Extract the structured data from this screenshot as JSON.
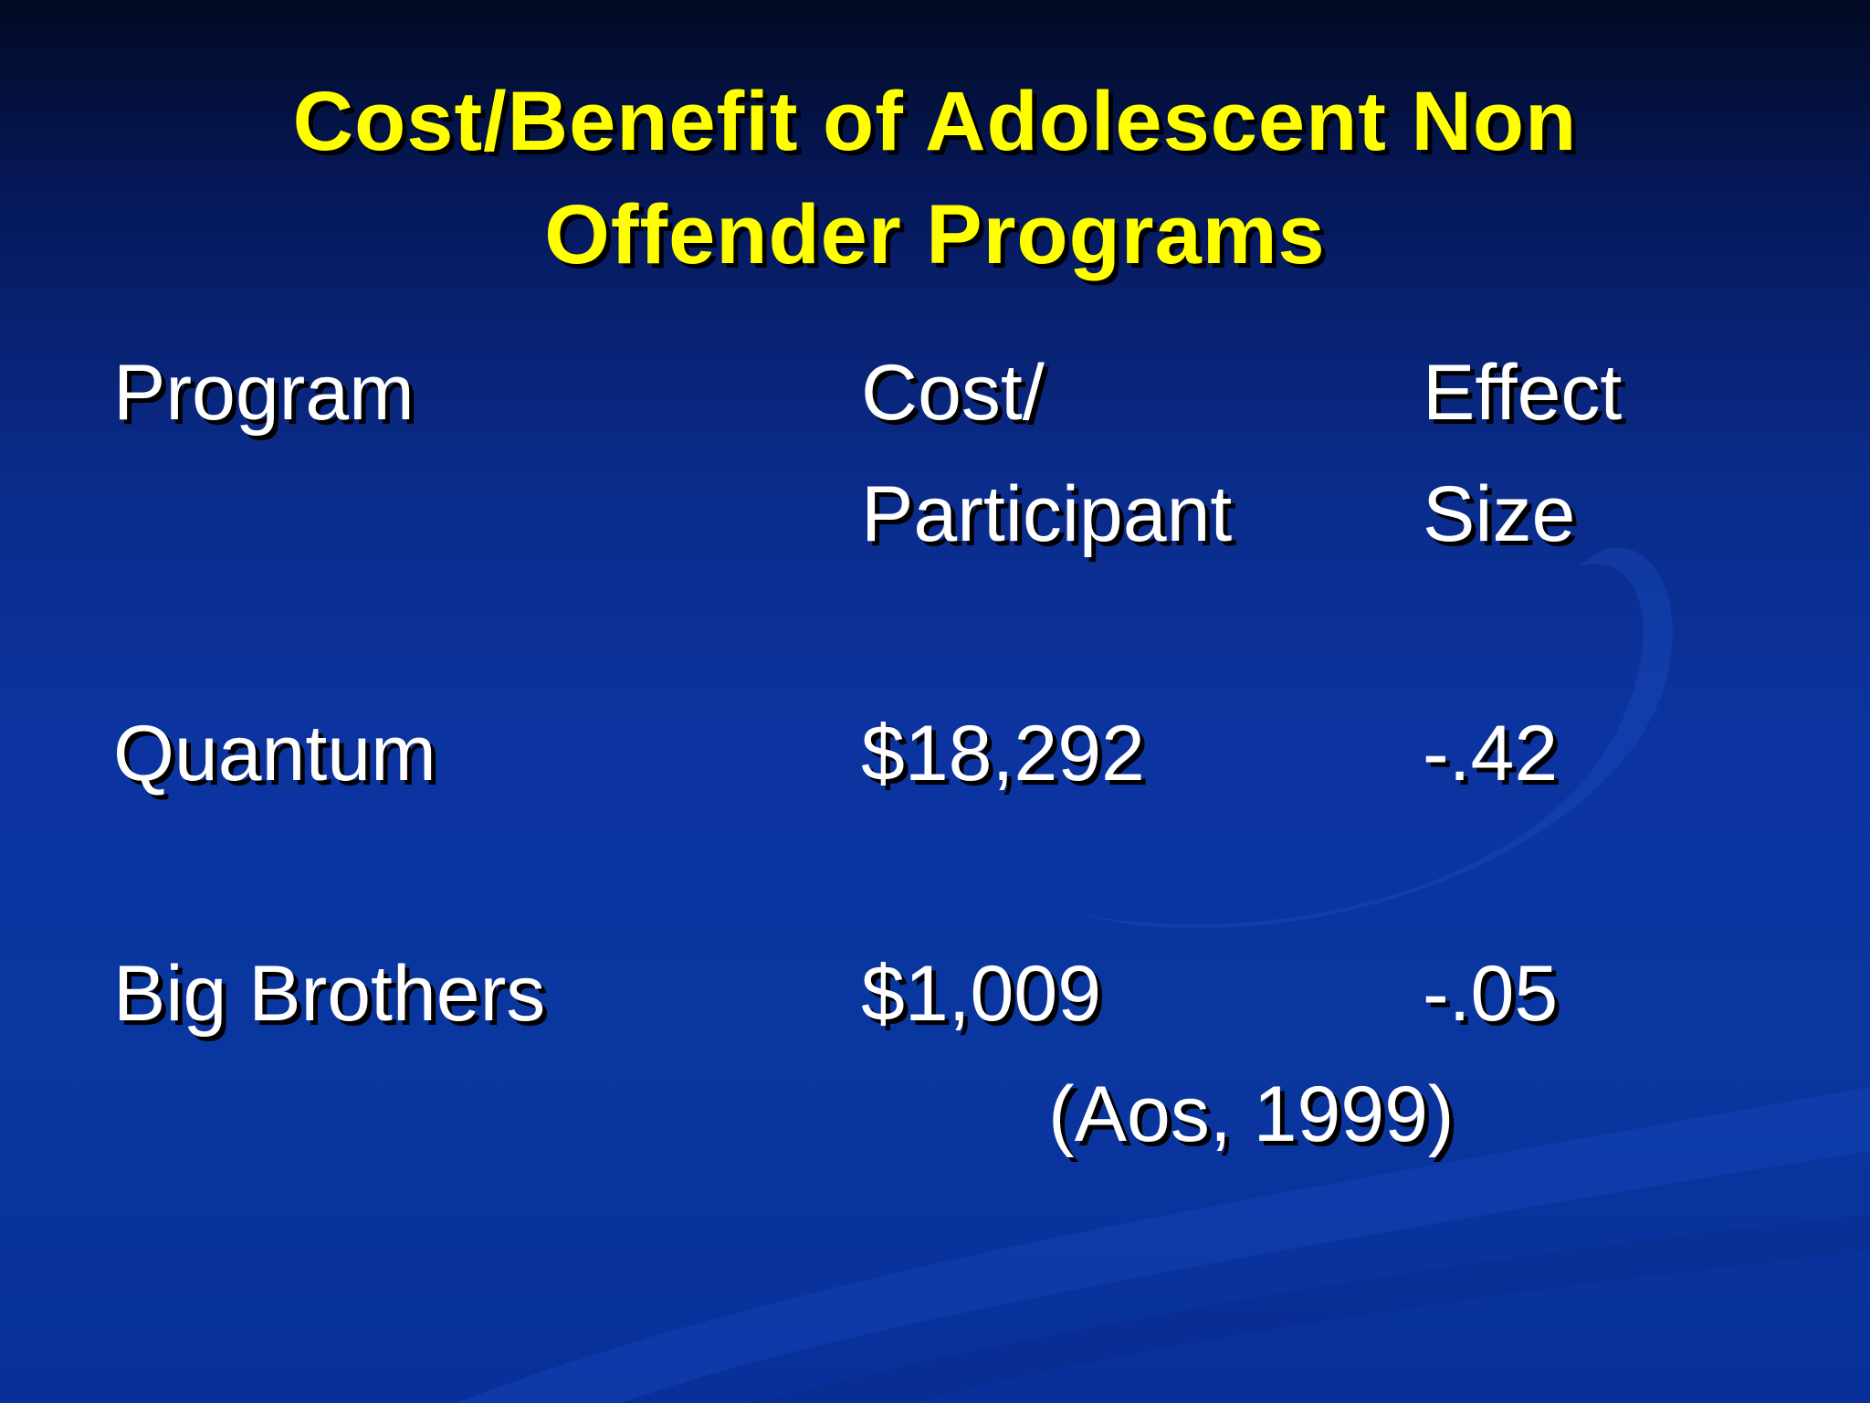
{
  "slide": {
    "title_line_1": "Cost/Benefit of Adolescent Non",
    "title_line_2": "Offender Programs",
    "colors": {
      "title": "#ffff00",
      "body_text": "#ffffff",
      "background": "#0b34a0"
    }
  },
  "table": {
    "headers": {
      "program": "Program",
      "cost_line_1": "Cost/",
      "cost_line_2": "Participant",
      "effect_line_1": "Effect",
      "effect_line_2": "Size"
    },
    "rows": [
      {
        "program": "Quantum",
        "cost": "$18,292",
        "effect": "-.42"
      },
      {
        "program": "Big Brothers",
        "cost": "$1,009",
        "effect": "-.05"
      }
    ]
  },
  "citation": "(Aos, 1999)"
}
